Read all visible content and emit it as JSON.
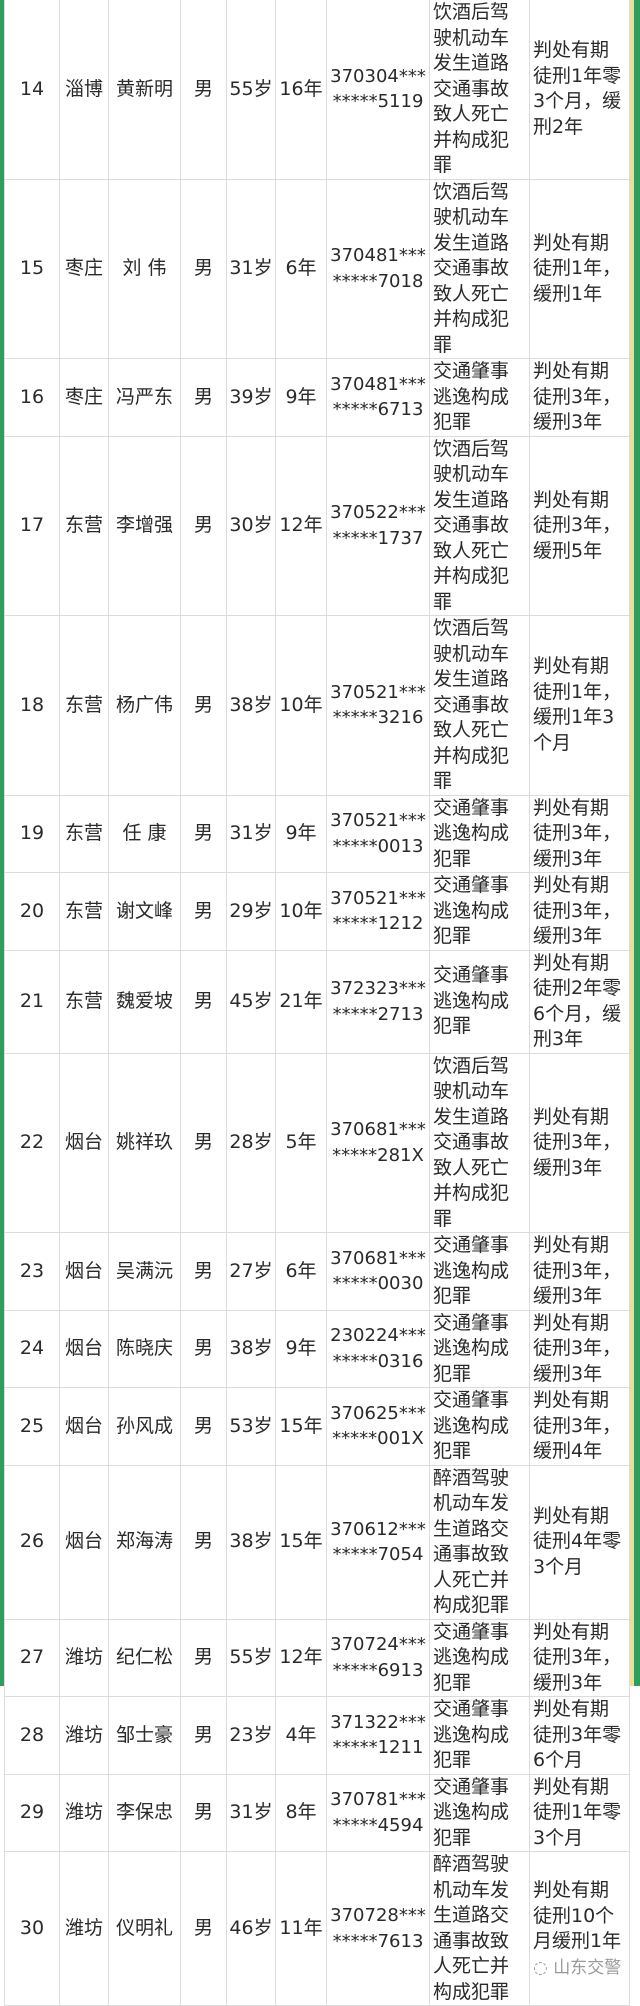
{
  "colors": {
    "border_green": "#2e9e5e",
    "grid": "#dcdcdc",
    "text": "#2a2a2a"
  },
  "rows": [
    {
      "no": "14",
      "city": "淄博",
      "name": "黄新明",
      "gender": "男",
      "age": "55岁",
      "years": "16年",
      "id1": "370304***",
      "id2": "*****5119",
      "crime": "饮酒后驾驶机动车发生道路交通事故致人死亡并构成犯罪",
      "penalty": "判处有期徒刑1年零3个月，缓刑2年"
    },
    {
      "no": "15",
      "city": "枣庄",
      "name": "刘 伟",
      "gender": "男",
      "age": "31岁",
      "years": "6年",
      "id1": "370481***",
      "id2": "*****7018",
      "crime": "饮酒后驾驶机动车发生道路交通事故致人死亡并构成犯罪",
      "penalty": "判处有期徒刑1年，缓刑1年"
    },
    {
      "no": "16",
      "city": "枣庄",
      "name": "冯严东",
      "gender": "男",
      "age": "39岁",
      "years": "9年",
      "id1": "370481***",
      "id2": "*****6713",
      "crime": "交通肇事逃逸构成犯罪",
      "penalty": "判处有期徒刑3年，缓刑3年"
    },
    {
      "no": "17",
      "city": "东营",
      "name": "李增强",
      "gender": "男",
      "age": "30岁",
      "years": "12年",
      "id1": "370522***",
      "id2": "*****1737",
      "crime": "饮酒后驾驶机动车发生道路交通事故致人死亡并构成犯罪",
      "penalty": "判处有期徒刑3年，缓刑5年"
    },
    {
      "no": "18",
      "city": "东营",
      "name": "杨广伟",
      "gender": "男",
      "age": "38岁",
      "years": "10年",
      "id1": "370521***",
      "id2": "*****3216",
      "crime": "饮酒后驾驶机动车发生道路交通事故致人死亡并构成犯罪",
      "penalty": "判处有期徒刑1年，缓刑1年3个月"
    },
    {
      "no": "19",
      "city": "东营",
      "name": "任 康",
      "gender": "男",
      "age": "31岁",
      "years": "9年",
      "id1": "370521***",
      "id2": "*****0013",
      "crime": "交通肇事逃逸构成犯罪",
      "penalty": "判处有期徒刑3年，缓刑3年"
    },
    {
      "no": "20",
      "city": "东营",
      "name": "谢文峰",
      "gender": "男",
      "age": "29岁",
      "years": "10年",
      "id1": "370521***",
      "id2": "*****1212",
      "crime": "交通肇事逃逸构成犯罪",
      "penalty": "判处有期徒刑3年，缓刑3年"
    },
    {
      "no": "21",
      "city": "东营",
      "name": "魏爱坡",
      "gender": "男",
      "age": "45岁",
      "years": "21年",
      "id1": "372323***",
      "id2": "*****2713",
      "crime": "交通肇事逃逸构成犯罪",
      "penalty": "判处有期徒刑2年零6个月，缓刑3年"
    },
    {
      "no": "22",
      "city": "烟台",
      "name": "姚祥玖",
      "gender": "男",
      "age": "28岁",
      "years": "5年",
      "id1": "370681***",
      "id2": "*****281X",
      "crime": "饮酒后驾驶机动车发生道路交通事故致人死亡并构成犯罪",
      "penalty": "判处有期徒刑3年，缓刑3年"
    },
    {
      "no": "23",
      "city": "烟台",
      "name": "吴满沅",
      "gender": "男",
      "age": "27岁",
      "years": "6年",
      "id1": "370681***",
      "id2": "*****0030",
      "crime": "交通肇事逃逸构成犯罪",
      "penalty": "判处有期徒刑3年，缓刑3年"
    },
    {
      "no": "24",
      "city": "烟台",
      "name": "陈晓庆",
      "gender": "男",
      "age": "38岁",
      "years": "9年",
      "id1": "230224***",
      "id2": "*****0316",
      "crime": "交通肇事逃逸构成犯罪",
      "penalty": "判处有期徒刑3年，缓刑3年"
    },
    {
      "no": "25",
      "city": "烟台",
      "name": "孙风成",
      "gender": "男",
      "age": "53岁",
      "years": "15年",
      "id1": "370625***",
      "id2": "*****001X",
      "crime": "交通肇事逃逸构成犯罪",
      "penalty": "判处有期徒刑3年，缓刑4年"
    },
    {
      "no": "26",
      "city": "烟台",
      "name": "郑海涛",
      "gender": "男",
      "age": "38岁",
      "years": "15年",
      "id1": "370612***",
      "id2": "*****7054",
      "crime": "醉酒驾驶机动车发生道路交通事故致人死亡并构成犯罪",
      "penalty": "判处有期徒刑4年零3个月"
    },
    {
      "no": "27",
      "city": "潍坊",
      "name": "纪仁松",
      "gender": "男",
      "age": "55岁",
      "years": "12年",
      "id1": "370724***",
      "id2": "*****6913",
      "crime": "交通肇事逃逸构成犯罪",
      "penalty": "判处有期徒刑3年，缓刑3年"
    },
    {
      "no": "28",
      "city": "潍坊",
      "name": "邹士豪",
      "gender": "男",
      "age": "23岁",
      "years": "4年",
      "id1": "371322***",
      "id2": "*****1211",
      "crime": "交通肇事逃逸构成犯罪",
      "penalty": "判处有期徒刑3年零6个月"
    },
    {
      "no": "29",
      "city": "潍坊",
      "name": "李保忠",
      "gender": "男",
      "age": "31岁",
      "years": "8年",
      "id1": "370781***",
      "id2": "*****4594",
      "crime": "交通肇事逃逸构成犯罪",
      "penalty": "判处有期徒刑1年零3个月"
    },
    {
      "no": "30",
      "city": "潍坊",
      "name": "仪明礼",
      "gender": "男",
      "age": "46岁",
      "years": "11年",
      "id1": "370728***",
      "id2": "*****7613",
      "crime": "醉酒驾驶机动车发生道路交通事故致人死亡并构成犯罪",
      "penalty": "判处有期徒刑10个月缓刑1年"
    }
  ],
  "watermark": {
    "icon": "wechat-icon",
    "text": "山东交警"
  }
}
